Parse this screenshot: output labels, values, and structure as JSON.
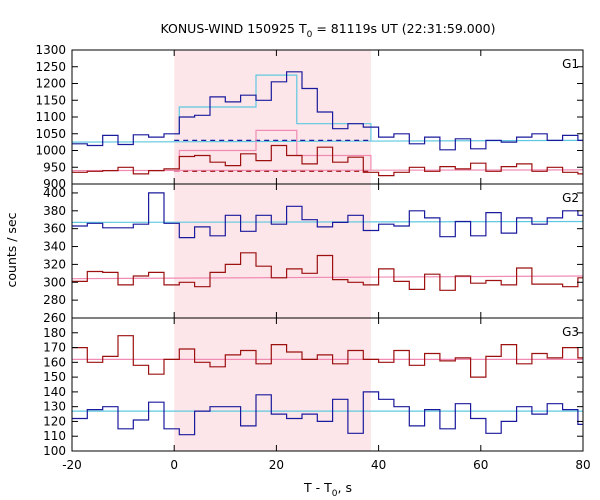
{
  "chart_data": {
    "type": "line",
    "title": {
      "prefix": "KONUS-WIND 150925 T",
      "sub": "0",
      "suffix": " = 81119s UT (22:31:59.000)"
    },
    "xlabel": {
      "prefix": "T - T",
      "sub": "0",
      "suffix": ", s"
    },
    "ylabel": "counts / sec",
    "xlim": [
      -20,
      80
    ],
    "xticks": [
      -20,
      0,
      20,
      40,
      60,
      80
    ],
    "shaded_interval": [
      0,
      38.5
    ],
    "colors": {
      "blue_data": "#1a1a9c",
      "red_data": "#9c1010",
      "cyan_fit": "#5ec8e0",
      "pink_fit": "#f08cb4",
      "shade": "#fde6e9"
    },
    "panels": [
      {
        "label": "G1",
        "ylim": [
          900,
          1300
        ],
        "yticks": [
          900,
          950,
          1000,
          1050,
          1100,
          1150,
          1200,
          1250,
          1300
        ],
        "bin_edges": [
          -20,
          -17,
          -14,
          -11,
          -8,
          -5,
          -2,
          1,
          4,
          7,
          10,
          13,
          16,
          19,
          22,
          25,
          28,
          31,
          34,
          37,
          40,
          43,
          46,
          49,
          52,
          55,
          58,
          61,
          64,
          67,
          70,
          73,
          76,
          79,
          80
        ],
        "series": [
          {
            "id": "blue",
            "style": "step",
            "values": [
              1020,
              1015,
              1045,
              1018,
              1047,
              1040,
              1050,
              1100,
              1105,
              1160,
              1145,
              1165,
              1150,
              1205,
              1235,
              1185,
              1115,
              1065,
              1080,
              1070,
              1040,
              1050,
              1020,
              1040,
              1002,
              1035,
              1005,
              1030,
              1025,
              1040,
              1050,
              1030,
              1045,
              1030
            ]
          },
          {
            "id": "red",
            "style": "step",
            "values": [
              935,
              938,
              940,
              950,
              930,
              940,
              945,
              982,
              985,
              965,
              955,
              990,
              970,
              1015,
              985,
              960,
              1010,
              965,
              980,
              935,
              925,
              935,
              950,
              938,
              952,
              945,
              962,
              938,
              952,
              960,
              938,
              950,
              935,
              930
            ]
          }
        ],
        "fits": [
          {
            "id": "cyan-level",
            "color": "cyan",
            "style": "solid",
            "points": [
              [
                -20,
                1025
              ],
              [
                80,
                1030
              ]
            ]
          },
          {
            "id": "blue-background",
            "color": "blue",
            "style": "dashed",
            "points": [
              [
                0,
                1030
              ],
              [
                38.5,
                1030
              ]
            ]
          },
          {
            "id": "pink-level",
            "color": "pink",
            "style": "solid",
            "points": [
              [
                -20,
                940
              ],
              [
                80,
                942
              ]
            ]
          },
          {
            "id": "red-background",
            "color": "red",
            "style": "dashed",
            "points": [
              [
                0,
                938
              ],
              [
                38.5,
                938
              ]
            ]
          },
          {
            "id": "cyan-model",
            "color": "cyan",
            "style": "steps",
            "points": [
              [
                0,
                1050
              ],
              [
                1,
                1050
              ],
              [
                1,
                1130
              ],
              [
                16,
                1130
              ],
              [
                16,
                1225
              ],
              [
                24,
                1225
              ],
              [
                24,
                1080
              ],
              [
                38.5,
                1080
              ],
              [
                38.5,
                1030
              ]
            ]
          },
          {
            "id": "pink-model",
            "color": "pink",
            "style": "steps",
            "points": [
              [
                0,
                938
              ],
              [
                1,
                938
              ],
              [
                1,
                1000
              ],
              [
                16,
                1000
              ],
              [
                16,
                1060
              ],
              [
                24,
                1060
              ],
              [
                24,
                985
              ],
              [
                38.5,
                985
              ],
              [
                38.5,
                942
              ]
            ]
          }
        ]
      },
      {
        "label": "G2",
        "ylim": [
          260,
          410
        ],
        "yticks": [
          260,
          280,
          300,
          320,
          340,
          360,
          380,
          400
        ],
        "bin_edges": [
          -20,
          -17,
          -14,
          -11,
          -8,
          -5,
          -2,
          1,
          4,
          7,
          10,
          13,
          16,
          19,
          22,
          25,
          28,
          31,
          34,
          37,
          40,
          43,
          46,
          49,
          52,
          55,
          58,
          61,
          64,
          67,
          70,
          73,
          76,
          79,
          80
        ],
        "series": [
          {
            "id": "blue",
            "style": "step",
            "values": [
              363,
              366,
              361,
              361,
              365,
              400,
              366,
              350,
              362,
              352,
              375,
              357,
              375,
              365,
              385,
              370,
              362,
              367,
              375,
              358,
              365,
              363,
              380,
              372,
              351,
              368,
              352,
              378,
              355,
              372,
              365,
              372,
              380,
              375
            ]
          },
          {
            "id": "red",
            "style": "step",
            "values": [
              301,
              312,
              311,
              297,
              307,
              311,
              297,
              300,
              295,
              311,
              320,
              333,
              318,
              305,
              315,
              310,
              330,
              303,
              300,
              297,
              315,
              301,
              292,
              309,
              291,
              307,
              299,
              302,
              297,
              316,
              298,
              298,
              295,
              305
            ]
          }
        ],
        "fits": [
          {
            "id": "cyan-level",
            "color": "cyan",
            "style": "solid",
            "points": [
              [
                -20,
                367
              ],
              [
                80,
                368
              ]
            ]
          },
          {
            "id": "pink-level",
            "color": "pink",
            "style": "solid",
            "points": [
              [
                -20,
                304
              ],
              [
                80,
                307
              ]
            ]
          }
        ]
      },
      {
        "label": "G3",
        "ylim": [
          100,
          190
        ],
        "yticks": [
          100,
          110,
          120,
          130,
          140,
          150,
          160,
          170,
          180
        ],
        "bin_edges": [
          -20,
          -17,
          -14,
          -11,
          -8,
          -5,
          -2,
          1,
          4,
          7,
          10,
          13,
          16,
          19,
          22,
          25,
          28,
          31,
          34,
          37,
          40,
          43,
          46,
          49,
          52,
          55,
          58,
          61,
          64,
          67,
          70,
          73,
          76,
          79,
          80
        ],
        "series": [
          {
            "id": "red",
            "style": "step",
            "values": [
              170,
              160,
              164,
              178,
              158,
              152,
              162,
              169,
              160,
              157,
              165,
              168,
              159,
              172,
              167,
              162,
              165,
              159,
              168,
              162,
              160,
              168,
              158,
              166,
              161,
              163,
              150,
              164,
              172,
              159,
              166,
              163,
              170,
              163
            ]
          },
          {
            "id": "blue",
            "style": "step",
            "values": [
              122,
              128,
              130,
              115,
              121,
              133,
              115,
              111,
              127,
              130,
              130,
              117,
              138,
              125,
              122,
              125,
              120,
              135,
              112,
              140,
              135,
              130,
              117,
              128,
              115,
              132,
              122,
              112,
              120,
              130,
              125,
              132,
              128,
              118
            ]
          }
        ],
        "fits": [
          {
            "id": "pink-level",
            "color": "pink",
            "style": "solid",
            "points": [
              [
                -20,
                162
              ],
              [
                80,
                162
              ]
            ]
          },
          {
            "id": "cyan-level",
            "color": "cyan",
            "style": "solid",
            "points": [
              [
                -20,
                127
              ],
              [
                80,
                127
              ]
            ]
          }
        ]
      }
    ]
  }
}
